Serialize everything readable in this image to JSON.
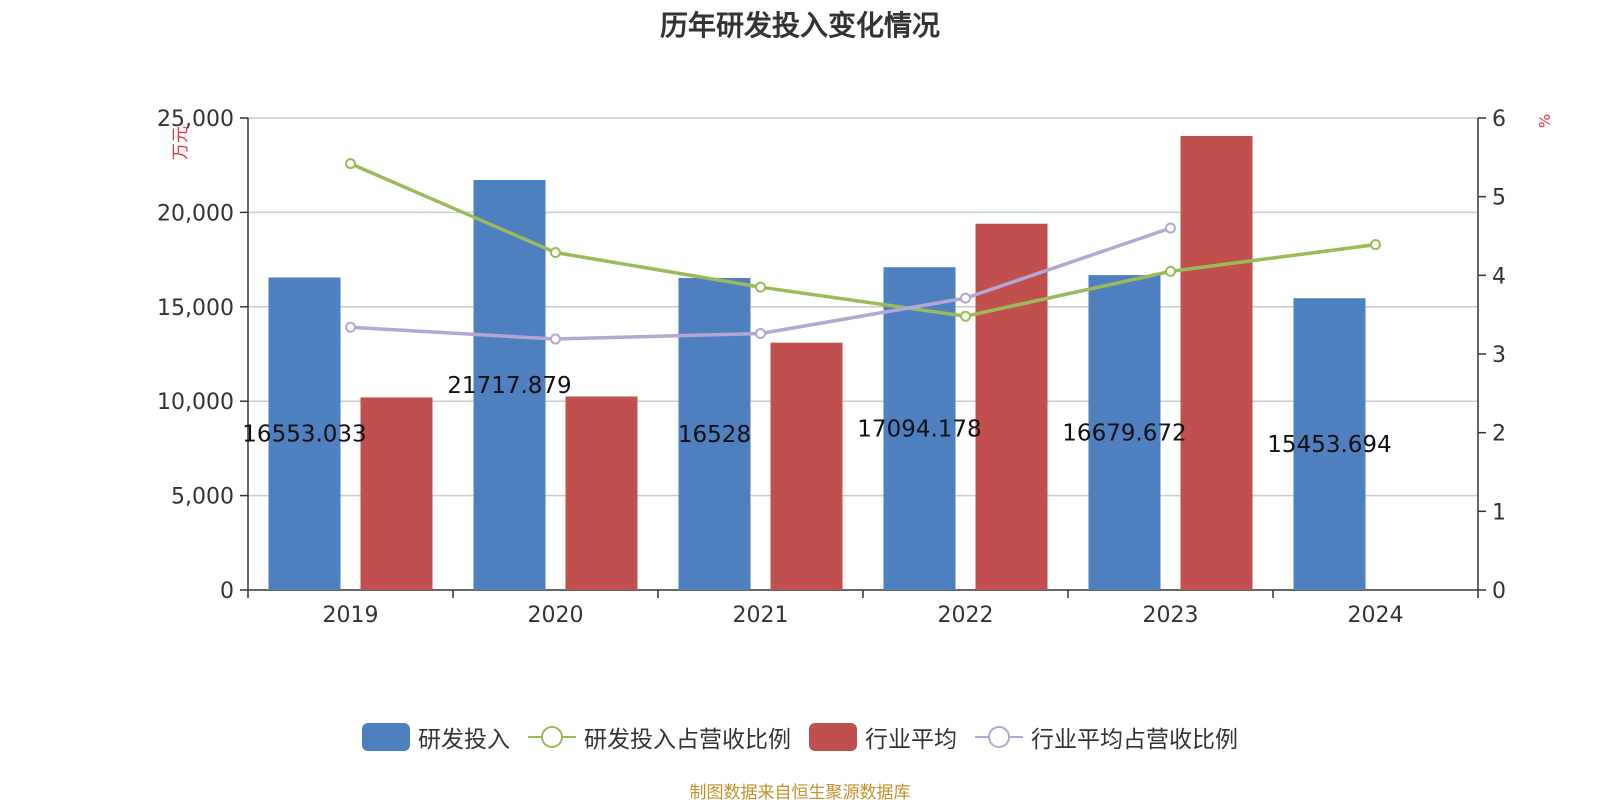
{
  "chart_data": {
    "type": "bar",
    "title": "历年研发投入变化情况",
    "categories": [
      "2019",
      "2020",
      "2021",
      "2022",
      "2023",
      "2024"
    ],
    "y_left": {
      "label": "万元",
      "ylim": [
        0,
        25000
      ],
      "ticks": [
        "0",
        "5,000",
        "10,000",
        "15,000",
        "20,000",
        "25,000"
      ],
      "tick_values": [
        0,
        5000,
        10000,
        15000,
        20000,
        25000
      ]
    },
    "y_right": {
      "label": "%",
      "ylim": [
        0,
        6
      ],
      "ticks": [
        "0",
        "1",
        "2",
        "3",
        "4",
        "5",
        "6"
      ],
      "tick_values": [
        0,
        1,
        2,
        3,
        4,
        5,
        6
      ]
    },
    "grid": true,
    "legend_position": "bottom",
    "series": [
      {
        "name": "研发投入",
        "type": "bar",
        "axis": "left",
        "color": "#4e7fbe",
        "values": [
          16553.033,
          21717.879,
          16528,
          17094.178,
          16679.672,
          15453.694
        ],
        "data_labels": [
          "16553.033",
          "21717.879",
          "16528",
          "17094.178",
          "16679.672",
          "15453.694"
        ]
      },
      {
        "name": "研发投入占营收比例",
        "type": "line",
        "axis": "right",
        "color": "#9bbb59",
        "values": [
          5.42,
          4.29,
          3.85,
          3.48,
          4.05,
          4.39
        ]
      },
      {
        "name": "行业平均",
        "type": "bar",
        "axis": "left",
        "color": "#c0504d",
        "values": [
          10200,
          10250,
          13100,
          19400,
          24050,
          null
        ]
      },
      {
        "name": "行业平均占营收比例",
        "type": "line",
        "axis": "right",
        "color": "#b4a7d6",
        "values": [
          3.34,
          3.19,
          3.26,
          3.71,
          4.6,
          null
        ]
      }
    ]
  },
  "legend": {
    "items": [
      {
        "label": "研发投入",
        "kind": "bar",
        "color": "#4e7fbe"
      },
      {
        "label": "研发投入占营收比例",
        "kind": "line",
        "color": "#9bbb59"
      },
      {
        "label": "行业平均",
        "kind": "bar",
        "color": "#c0504d"
      },
      {
        "label": "行业平均占营收比例",
        "kind": "line",
        "color": "#b4a7d6"
      }
    ]
  },
  "source_text": "制图数据来自恒生聚源数据库"
}
